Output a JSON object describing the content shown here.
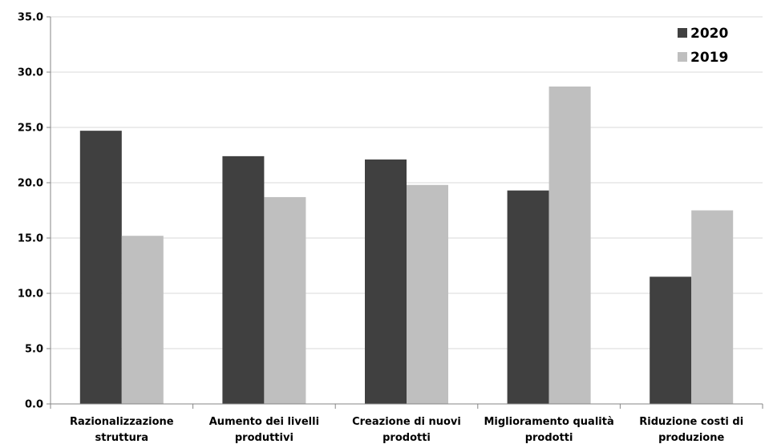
{
  "chart_data": {
    "type": "bar",
    "categories": [
      [
        "Razionalizzazione",
        "struttura"
      ],
      [
        "Aumento dei livelli",
        "produttivi"
      ],
      [
        "Creazione di nuovi",
        "prodotti"
      ],
      [
        "Miglioramento qualità",
        "prodotti"
      ],
      [
        "Riduzione costi di",
        "produzione"
      ]
    ],
    "series": [
      {
        "name": "2020",
        "color": "#404040",
        "values": [
          24.7,
          22.4,
          22.1,
          19.3,
          11.5
        ]
      },
      {
        "name": "2019",
        "color": "#bfbfbf",
        "values": [
          15.2,
          18.7,
          19.8,
          28.7,
          17.5
        ]
      }
    ],
    "ylim": [
      0,
      35
    ],
    "yticks": [
      "0.0",
      "5.0",
      "10.0",
      "15.0",
      "20.0",
      "25.0",
      "30.0",
      "35.0"
    ],
    "grid": true,
    "legend_position": "top-right",
    "title": "",
    "xlabel": "",
    "ylabel": ""
  }
}
